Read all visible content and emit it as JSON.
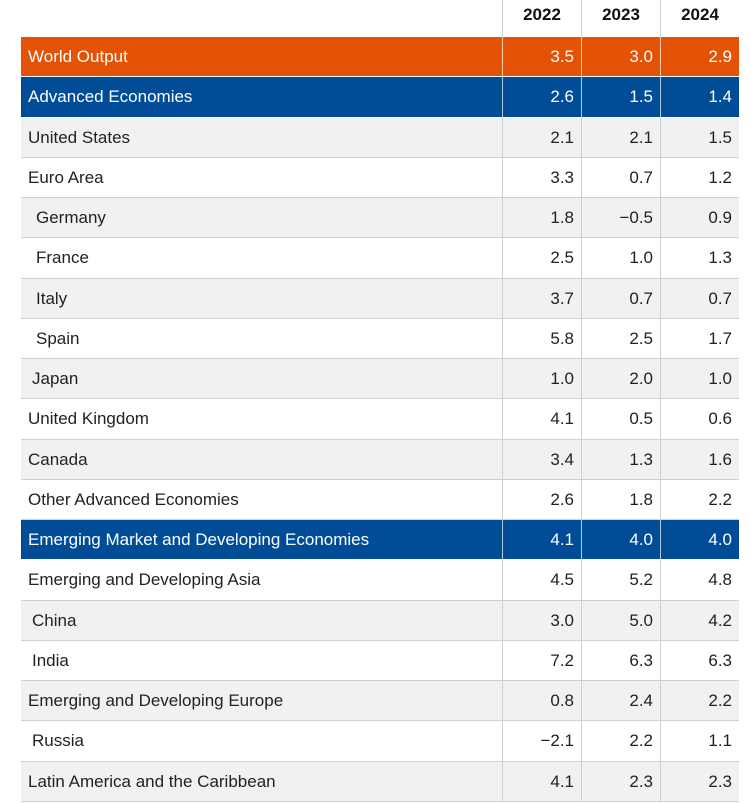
{
  "columns": [
    "2022",
    "2023",
    "2024"
  ],
  "rows": [
    {
      "label": "World Output",
      "v": [
        "3.5",
        "3.0",
        "2.9"
      ],
      "style": "hl-orange",
      "indent": 0
    },
    {
      "label": "Advanced Economies",
      "v": [
        "2.6",
        "1.5",
        "1.4"
      ],
      "style": "hl-blue",
      "indent": 0
    },
    {
      "label": "United States",
      "v": [
        "2.1",
        "2.1",
        "1.5"
      ],
      "style": "odd",
      "indent": 0
    },
    {
      "label": "Euro Area",
      "v": [
        "3.3",
        "0.7",
        "1.2"
      ],
      "style": "even",
      "indent": 0
    },
    {
      "label": "Germany",
      "v": [
        "1.8",
        "−0.5",
        "0.9"
      ],
      "style": "odd",
      "indent": 1
    },
    {
      "label": "France",
      "v": [
        "2.5",
        "1.0",
        "1.3"
      ],
      "style": "even",
      "indent": 1
    },
    {
      "label": "Italy",
      "v": [
        "3.7",
        "0.7",
        "0.7"
      ],
      "style": "odd",
      "indent": 1
    },
    {
      "label": "Spain",
      "v": [
        "5.8",
        "2.5",
        "1.7"
      ],
      "style": "even",
      "indent": 1
    },
    {
      "label": "Japan",
      "v": [
        "1.0",
        "2.0",
        "1.0"
      ],
      "style": "odd",
      "indent": 2
    },
    {
      "label": "United Kingdom",
      "v": [
        "4.1",
        "0.5",
        "0.6"
      ],
      "style": "even",
      "indent": 0
    },
    {
      "label": "Canada",
      "v": [
        "3.4",
        "1.3",
        "1.6"
      ],
      "style": "odd",
      "indent": 0
    },
    {
      "label": "Other Advanced Economies",
      "v": [
        "2.6",
        "1.8",
        "2.2"
      ],
      "style": "even",
      "indent": 0
    },
    {
      "label": "Emerging Market and Developing Economies",
      "v": [
        "4.1",
        "4.0",
        "4.0"
      ],
      "style": "hl-blue",
      "indent": 0
    },
    {
      "label": "Emerging and Developing Asia",
      "v": [
        "4.5",
        "5.2",
        "4.8"
      ],
      "style": "even",
      "indent": 0
    },
    {
      "label": "China",
      "v": [
        "3.0",
        "5.0",
        "4.2"
      ],
      "style": "odd",
      "indent": 2
    },
    {
      "label": "India",
      "v": [
        "7.2",
        "6.3",
        "6.3"
      ],
      "style": "even",
      "indent": 2
    },
    {
      "label": "Emerging and Developing Europe",
      "v": [
        "0.8",
        "2.4",
        "2.2"
      ],
      "style": "odd",
      "indent": 0
    },
    {
      "label": "Russia",
      "v": [
        "−2.1",
        "2.2",
        "1.1"
      ],
      "style": "even",
      "indent": 2
    },
    {
      "label": "Latin America and the Caribbean",
      "v": [
        "4.1",
        "2.3",
        "2.3"
      ],
      "style": "odd",
      "indent": 0
    }
  ]
}
